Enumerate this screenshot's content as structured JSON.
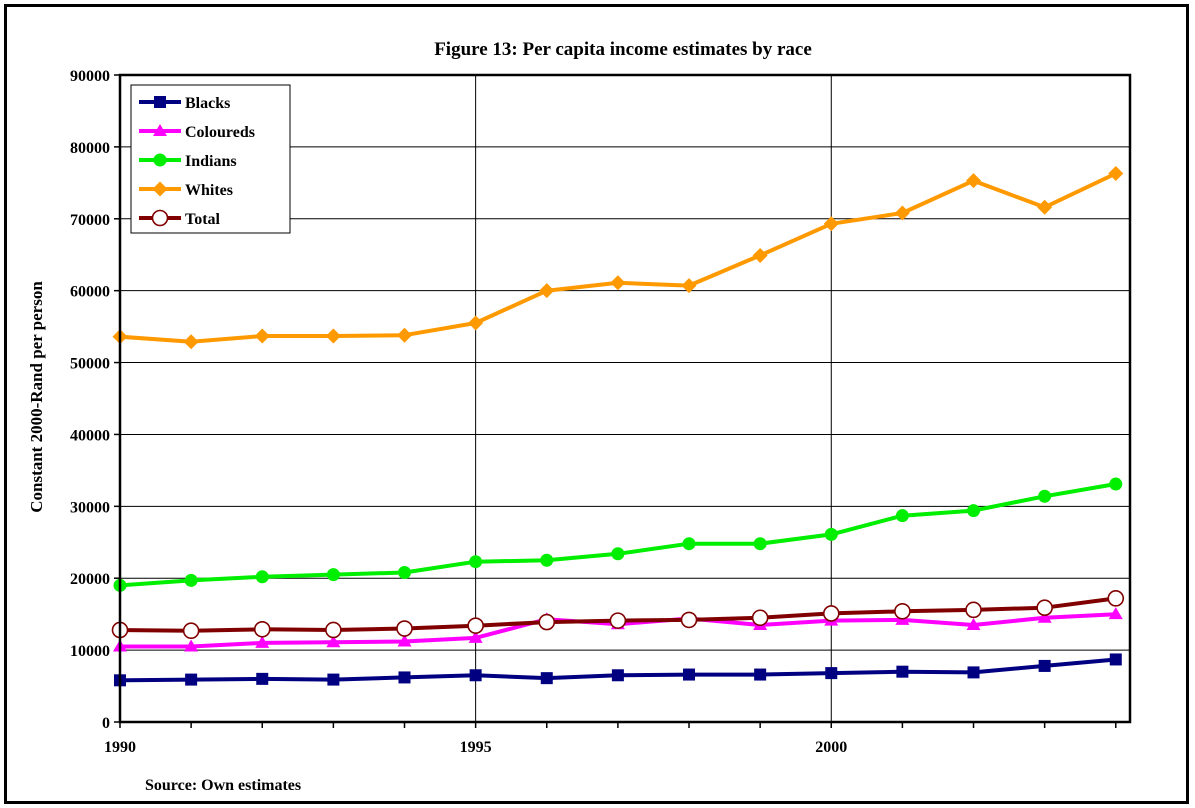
{
  "chart_data": {
    "type": "line",
    "title": "Figure 13: Per capita income estimates by race",
    "xlabel": "",
    "ylabel": "Constant 2000-Rand per person",
    "source": "Source: Own estimates",
    "x": [
      1990,
      1991,
      1992,
      1993,
      1994,
      1995,
      1996,
      1997,
      1998,
      1999,
      2000,
      2001,
      2002,
      2003,
      2004
    ],
    "x_ticks": [
      "1990",
      "1995",
      "2000"
    ],
    "y_ticks": [
      "0",
      "10000",
      "20000",
      "30000",
      "40000",
      "50000",
      "60000",
      "70000",
      "80000",
      "90000"
    ],
    "xlim": [
      1990,
      2004.2
    ],
    "ylim": [
      0,
      90000
    ],
    "grid": true,
    "legend_position": "top-left",
    "series": [
      {
        "name": "Blacks",
        "color": "#000080",
        "marker": "square",
        "values": [
          5800,
          5900,
          6000,
          5900,
          6200,
          6500,
          6100,
          6500,
          6600,
          6600,
          6800,
          7000,
          6900,
          7800,
          8700
        ]
      },
      {
        "name": "Coloureds",
        "color": "#ff00ff",
        "marker": "triangle",
        "values": [
          10500,
          10500,
          11000,
          11100,
          11200,
          11700,
          14300,
          13600,
          14400,
          13500,
          14100,
          14200,
          13500,
          14500,
          15000
        ]
      },
      {
        "name": "Indians",
        "color": "#00ee00",
        "marker": "circle",
        "values": [
          19000,
          19700,
          20200,
          20500,
          20800,
          22300,
          22500,
          23400,
          24800,
          24800,
          26100,
          28700,
          29400,
          31400,
          33100
        ]
      },
      {
        "name": "Whites",
        "color": "#ff9900",
        "marker": "diamond",
        "values": [
          53600,
          52900,
          53700,
          53700,
          53800,
          55500,
          60000,
          61100,
          60700,
          64900,
          69300,
          70800,
          75300,
          71600,
          76300
        ]
      },
      {
        "name": "Total",
        "color": "#800000",
        "marker": "open-circle",
        "values": [
          12800,
          12700,
          12900,
          12800,
          13000,
          13400,
          13900,
          14100,
          14200,
          14500,
          15100,
          15400,
          15600,
          15900,
          17200
        ]
      }
    ]
  }
}
